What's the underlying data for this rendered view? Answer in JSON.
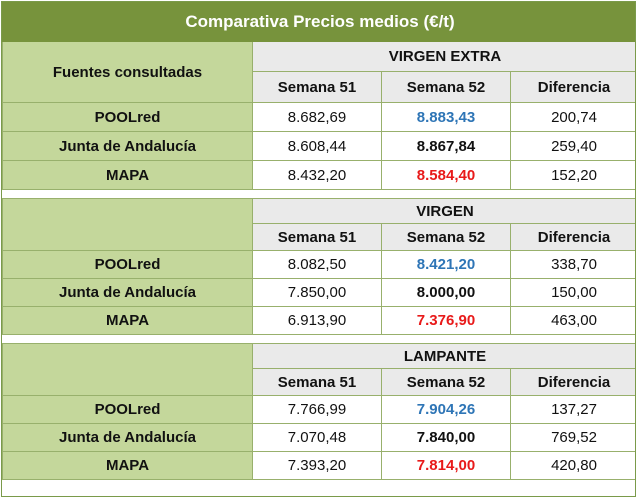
{
  "title": "Comparativa Precios  medios (€/t)",
  "sources_header": "Fuentes consultadas",
  "column_headers": [
    "Semana 51",
    "Semana 52",
    "Diferencia"
  ],
  "colors": {
    "title_bg": "#77933c",
    "source_bg": "#c4d79b",
    "header_bg": "#eaeaea",
    "blue_value": "#2e75b6",
    "red_value": "#e81a1a"
  },
  "sections": [
    {
      "name": "VIRGEN EXTRA",
      "rows": [
        {
          "source": "POOLred",
          "w51": "8.682,69",
          "w52": "8.883,43",
          "diff": "200,74",
          "w52_style": "blue"
        },
        {
          "source": "Junta de Andalucía",
          "w51": "8.608,44",
          "w52": "8.867,84",
          "diff": "259,40",
          "w52_style": "black"
        },
        {
          "source": "MAPA",
          "w51": "8.432,20",
          "w52": "8.584,40",
          "diff": "152,20",
          "w52_style": "red"
        }
      ]
    },
    {
      "name": "VIRGEN",
      "rows": [
        {
          "source": "POOLred",
          "w51": "8.082,50",
          "w52": "8.421,20",
          "diff": "338,70",
          "w52_style": "blue"
        },
        {
          "source": "Junta de Andalucía",
          "w51": "7.850,00",
          "w52": "8.000,00",
          "diff": "150,00",
          "w52_style": "black"
        },
        {
          "source": "MAPA",
          "w51": "6.913,90",
          "w52": "7.376,90",
          "diff": "463,00",
          "w52_style": "red"
        }
      ]
    },
    {
      "name": "LAMPANTE",
      "rows": [
        {
          "source": "POOLred",
          "w51": "7.766,99",
          "w52": "7.904,26",
          "diff": "137,27",
          "w52_style": "blue"
        },
        {
          "source": "Junta de Andalucía",
          "w51": "7.070,48",
          "w52": "7.840,00",
          "diff": "769,52",
          "w52_style": "black"
        },
        {
          "source": "MAPA",
          "w51": "7.393,20",
          "w52": "7.814,00",
          "diff": "420,80",
          "w52_style": "red"
        }
      ]
    }
  ]
}
